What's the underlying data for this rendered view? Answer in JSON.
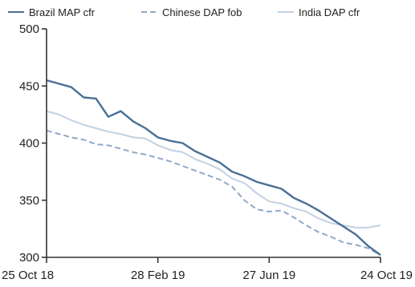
{
  "chart_data": {
    "type": "line",
    "title": "",
    "xlabel": "",
    "ylabel": "",
    "ylim": [
      300,
      500
    ],
    "y_ticks": [
      300,
      350,
      400,
      450,
      500
    ],
    "x_ticks": [
      "25 Oct 18",
      "28 Feb 19",
      "27 Jun 19",
      "24 Oct 19"
    ],
    "x": [
      "25 Oct 18",
      "8 Nov 18",
      "22 Nov 18",
      "6 Dec 18",
      "20 Dec 18",
      "3 Jan 19",
      "17 Jan 19",
      "31 Jan 19",
      "14 Feb 19",
      "28 Feb 19",
      "14 Mar 19",
      "28 Mar 19",
      "11 Apr 19",
      "25 Apr 19",
      "9 May 19",
      "23 May 19",
      "6 Jun 19",
      "20 Jun 19",
      "27 Jun 19",
      "11 Jul 19",
      "25 Jul 19",
      "8 Aug 19",
      "22 Aug 19",
      "5 Sep 19",
      "19 Sep 19",
      "3 Oct 19",
      "17 Oct 19",
      "24 Oct 19"
    ],
    "legend": {
      "position": "top"
    },
    "grid": false,
    "series": [
      {
        "name": "Brazil MAP cfr",
        "color": "#4a6f96",
        "style": "solid",
        "values": [
          455,
          452,
          449,
          440,
          439,
          423,
          428,
          419,
          413,
          405,
          402,
          400,
          393,
          388,
          383,
          375,
          371,
          366,
          363,
          360,
          352,
          347,
          341,
          334,
          327,
          320,
          310,
          302
        ]
      },
      {
        "name": "Chinese DAP fob",
        "color": "#8fa9c8",
        "style": "dashed",
        "values": [
          411,
          408,
          405,
          403,
          399,
          398,
          395,
          392,
          390,
          387,
          384,
          380,
          376,
          372,
          368,
          362,
          350,
          342,
          340,
          341,
          335,
          328,
          322,
          318,
          313,
          311,
          308,
          302
        ]
      },
      {
        "name": "India DAP cfr",
        "color": "#c2d1e2",
        "style": "solid",
        "values": [
          428,
          425,
          420,
          416,
          413,
          410,
          408,
          405,
          404,
          398,
          394,
          392,
          386,
          382,
          377,
          369,
          365,
          356,
          349,
          347,
          343,
          340,
          334,
          330,
          328,
          326,
          326,
          328
        ]
      }
    ]
  }
}
